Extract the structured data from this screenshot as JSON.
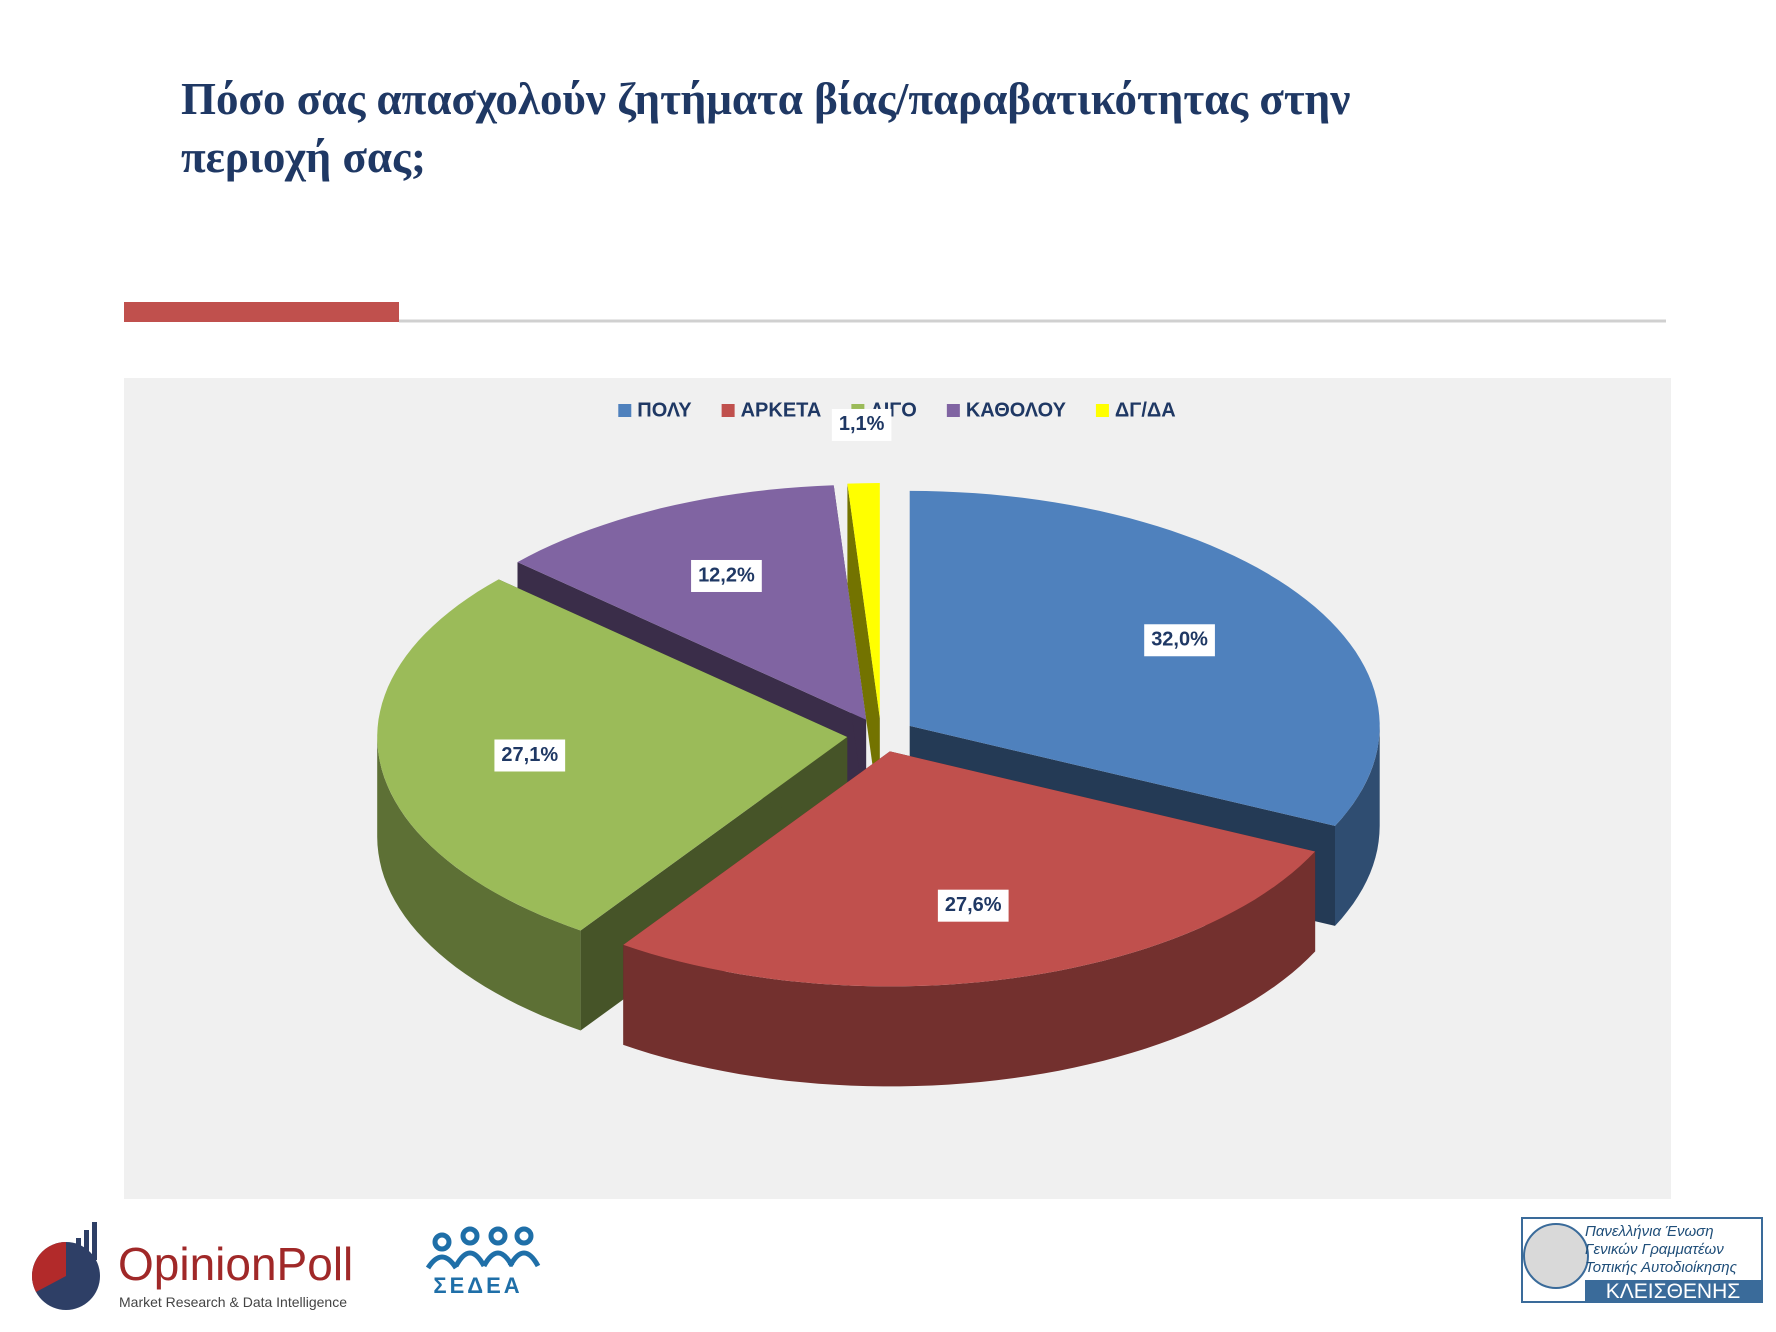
{
  "chart_data": {
    "type": "pie",
    "title": "Πόσο σας απασχολούν ζητήματα βίας/παραβατικότητας στην περιοχή σας;",
    "categories": [
      "ΠΟΛΥ",
      "ΑΡΚΕΤΑ",
      "ΛΙΓΟ",
      "ΚΑΘΟΛΟΥ",
      "ΔΓ/ΔΑ"
    ],
    "values": [
      32.0,
      27.6,
      27.1,
      12.2,
      1.1
    ],
    "value_labels": [
      "32,0%",
      "27,6%",
      "27,1%",
      "12,2%",
      "1,1%"
    ],
    "colors": [
      "#4f81bd",
      "#c0504d",
      "#9bbb59",
      "#8064a2",
      "#ffff00"
    ],
    "legend": "top"
  },
  "logos": {
    "opinion_poll": "OpinionPoll",
    "opinion_poll_tagline": "Market Research & Data Intelligence",
    "sedea": "ΣΕΔΕΑ",
    "kleisthenis_lines": [
      "Πανελλήνια Ένωση",
      "Γενικών Γραμματέων",
      "Τοπικής Αυτοδιοίκησης"
    ],
    "kleisthenis": "ΚΛΕΙΣΘΕΝΗΣ"
  }
}
